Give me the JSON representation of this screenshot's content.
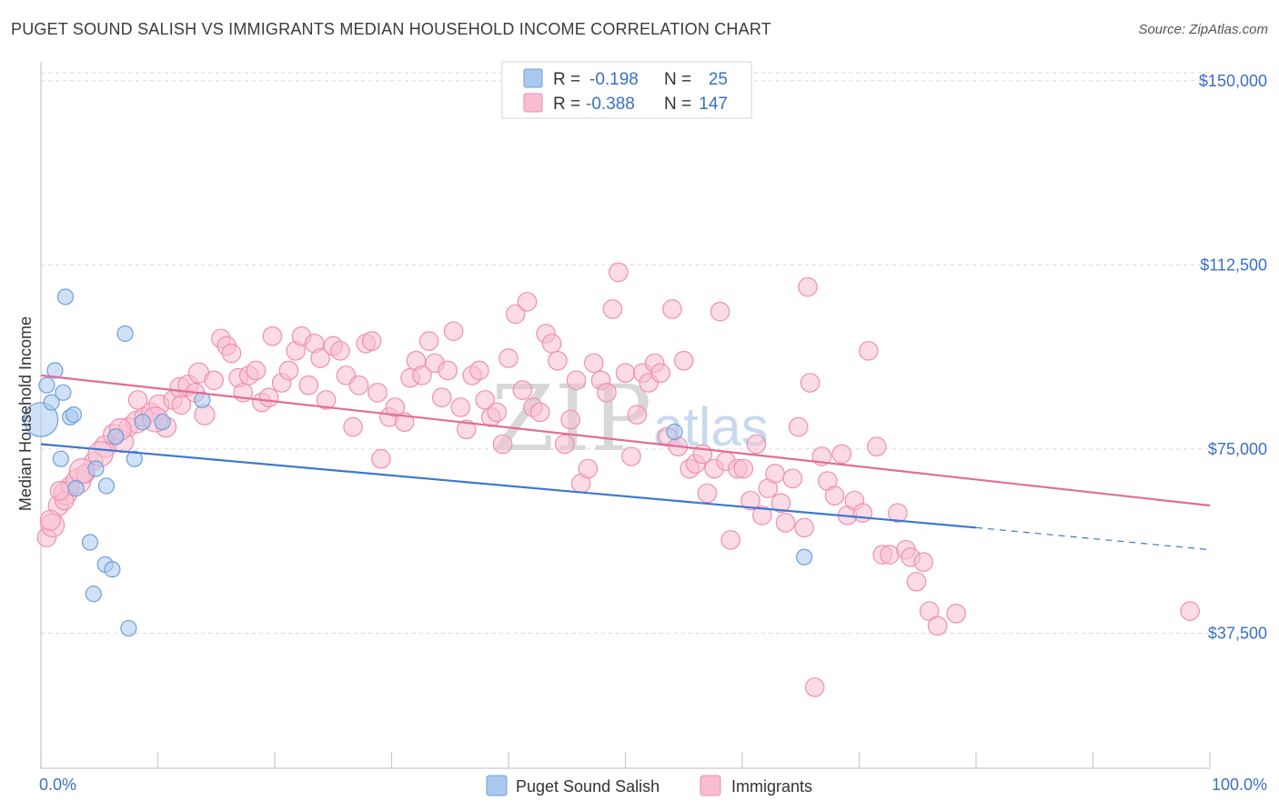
{
  "title": "PUGET SOUND SALISH VS IMMIGRANTS MEDIAN HOUSEHOLD INCOME CORRELATION CHART",
  "source": "Source: ZipAtlas.com",
  "watermark": {
    "zip": "ZIP",
    "atlas": "atlas"
  },
  "colors": {
    "blue_fill": "#a9c8ee",
    "blue_stroke": "#6e9fdc",
    "blue_line": "#3a78d0",
    "pink_fill": "#f7bdd0",
    "pink_stroke": "#ef8fb0",
    "pink_line": "#e26c97",
    "tick_text": "#3a6fc4",
    "grid": "#d9d9d9"
  },
  "legend": {
    "rows": [
      {
        "r_label": "R =",
        "r_value": "-0.198",
        "n_label": "N =",
        "n_value": "25",
        "series": "blue"
      },
      {
        "r_label": "R =",
        "r_value": "-0.388",
        "n_label": "N =",
        "n_value": "147",
        "series": "pink"
      }
    ]
  },
  "chart_data": {
    "type": "scatter",
    "title": "PUGET SOUND SALISH VS IMMIGRANTS MEDIAN HOUSEHOLD INCOME CORRELATION CHART",
    "xlabel": "",
    "ylabel": "Median Household Income",
    "xlim": [
      0,
      100
    ],
    "ylim": [
      10000,
      152000
    ],
    "x_tick_labels": [
      "0.0%",
      "100.0%"
    ],
    "y_ticks": [
      37500,
      75000,
      112500,
      150000
    ],
    "y_tick_labels": [
      "$37,500",
      "$75,000",
      "$112,500",
      "$150,000"
    ],
    "grid": true,
    "legend_position": "bottom",
    "series": [
      {
        "name": "Puget Sound Salish",
        "color": "blue",
        "trend": {
          "x": [
            0,
            80
          ],
          "y": [
            76000,
            59000
          ],
          "dashed_to": [
            100,
            54500
          ]
        },
        "points": [
          [
            0.0,
            81000,
            2.2
          ],
          [
            0.5,
            88000,
            1
          ],
          [
            0.9,
            84500,
            1
          ],
          [
            1.2,
            91000,
            1
          ],
          [
            1.9,
            86500,
            1
          ],
          [
            2.1,
            106000,
            1
          ],
          [
            2.5,
            81500,
            1
          ],
          [
            2.8,
            82000,
            1
          ],
          [
            1.7,
            73000,
            1
          ],
          [
            3.0,
            67000,
            1
          ],
          [
            4.2,
            56000,
            1
          ],
          [
            4.5,
            45500,
            1
          ],
          [
            4.7,
            71000,
            1
          ],
          [
            5.6,
            67500,
            1
          ],
          [
            5.5,
            51500,
            1
          ],
          [
            6.1,
            50500,
            1
          ],
          [
            6.4,
            77500,
            1
          ],
          [
            7.2,
            98500,
            1
          ],
          [
            7.5,
            38500,
            1
          ],
          [
            8.0,
            73000,
            1
          ],
          [
            10.4,
            80500,
            1
          ],
          [
            13.8,
            85000,
            1
          ],
          [
            8.7,
            80500,
            1
          ],
          [
            54.2,
            78500,
            1
          ],
          [
            65.3,
            53000,
            1
          ]
        ]
      },
      {
        "name": "Immigrants",
        "color": "pink",
        "trend": {
          "x": [
            0,
            100
          ],
          "y": [
            90000,
            63500
          ]
        },
        "points": [
          [
            0.5,
            57000,
            1.2
          ],
          [
            1.0,
            59500,
            1.5
          ],
          [
            1.5,
            63500,
            1.3
          ],
          [
            2.1,
            66000,
            1.5
          ],
          [
            2.5,
            67500,
            1.2
          ],
          [
            3.2,
            68500,
            1.6
          ],
          [
            3.8,
            70000,
            1.2
          ],
          [
            4.5,
            72500,
            1.2
          ],
          [
            5.5,
            75500,
            1.4
          ],
          [
            6.2,
            78000,
            1.3
          ],
          [
            7.0,
            76500,
            1.4
          ],
          [
            7.5,
            79500,
            1.2
          ],
          [
            8.2,
            80500,
            1.4
          ],
          [
            8.8,
            81500,
            1.2
          ],
          [
            9.4,
            82500,
            1.2
          ],
          [
            10.1,
            84000,
            1.3
          ],
          [
            10.7,
            79500,
            1.3
          ],
          [
            11.3,
            85000,
            1.2
          ],
          [
            11.9,
            87500,
            1.3
          ],
          [
            12.6,
            88000,
            1.3
          ],
          [
            13.2,
            86500,
            1.2
          ],
          [
            13.5,
            90500,
            1.3
          ],
          [
            14.0,
            82000,
            1.3
          ],
          [
            14.8,
            89000,
            1.2
          ],
          [
            15.4,
            97500,
            1.2
          ],
          [
            15.9,
            96000,
            1.2
          ],
          [
            16.3,
            94500,
            1.2
          ],
          [
            16.9,
            89500,
            1.2
          ],
          [
            17.3,
            86500,
            1.2
          ],
          [
            17.8,
            90000,
            1.2
          ],
          [
            18.4,
            91000,
            1.2
          ],
          [
            18.9,
            84500,
            1.2
          ],
          [
            19.5,
            85500,
            1.2
          ],
          [
            19.8,
            98000,
            1.2
          ],
          [
            20.6,
            88500,
            1.2
          ],
          [
            21.2,
            91000,
            1.2
          ],
          [
            21.8,
            95000,
            1.2
          ],
          [
            22.3,
            98000,
            1.2
          ],
          [
            22.9,
            88000,
            1.2
          ],
          [
            23.4,
            96500,
            1.2
          ],
          [
            23.9,
            93500,
            1.2
          ],
          [
            24.4,
            85000,
            1.2
          ],
          [
            25.0,
            96000,
            1.2
          ],
          [
            25.6,
            95000,
            1.2
          ],
          [
            26.1,
            90000,
            1.2
          ],
          [
            26.7,
            79500,
            1.2
          ],
          [
            27.2,
            88000,
            1.2
          ],
          [
            27.8,
            96500,
            1.2
          ],
          [
            28.3,
            97000,
            1.2
          ],
          [
            28.8,
            86500,
            1.2
          ],
          [
            29.1,
            73000,
            1.2
          ],
          [
            29.8,
            81500,
            1.2
          ],
          [
            30.3,
            83500,
            1.2
          ],
          [
            31.1,
            80500,
            1.2
          ],
          [
            31.6,
            89500,
            1.2
          ],
          [
            32.1,
            93000,
            1.2
          ],
          [
            32.6,
            90000,
            1.2
          ],
          [
            33.2,
            97000,
            1.2
          ],
          [
            33.7,
            92500,
            1.2
          ],
          [
            34.3,
            85500,
            1.2
          ],
          [
            34.8,
            91000,
            1.2
          ],
          [
            35.3,
            99000,
            1.2
          ],
          [
            35.9,
            83500,
            1.2
          ],
          [
            36.4,
            79000,
            1.2
          ],
          [
            36.9,
            90000,
            1.2
          ],
          [
            37.5,
            91000,
            1.2
          ],
          [
            38.0,
            85000,
            1.2
          ],
          [
            38.5,
            81500,
            1.2
          ],
          [
            39.0,
            82500,
            1.2
          ],
          [
            39.5,
            76000,
            1.2
          ],
          [
            40.0,
            93500,
            1.2
          ],
          [
            40.6,
            102500,
            1.2
          ],
          [
            41.2,
            87000,
            1.2
          ],
          [
            41.6,
            105000,
            1.2
          ],
          [
            42.1,
            83500,
            1.2
          ],
          [
            42.7,
            82500,
            1.2
          ],
          [
            43.2,
            98500,
            1.2
          ],
          [
            43.7,
            96500,
            1.2
          ],
          [
            44.2,
            93000,
            1.2
          ],
          [
            44.8,
            76000,
            1.2
          ],
          [
            45.3,
            81000,
            1.2
          ],
          [
            45.8,
            89000,
            1.2
          ],
          [
            46.2,
            68000,
            1.2
          ],
          [
            46.8,
            71000,
            1.2
          ],
          [
            47.3,
            92500,
            1.2
          ],
          [
            47.9,
            89000,
            1.2
          ],
          [
            48.4,
            86500,
            1.2
          ],
          [
            48.9,
            103500,
            1.2
          ],
          [
            49.4,
            111000,
            1.2
          ],
          [
            50.0,
            90500,
            1.2
          ],
          [
            50.5,
            73500,
            1.2
          ],
          [
            51.0,
            82000,
            1.2
          ],
          [
            51.5,
            90500,
            1.2
          ],
          [
            52.0,
            88500,
            1.2
          ],
          [
            52.5,
            92500,
            1.2
          ],
          [
            53.0,
            90500,
            1.2
          ],
          [
            53.6,
            77500,
            1.2
          ],
          [
            54.0,
            103500,
            1.2
          ],
          [
            54.5,
            75500,
            1.2
          ],
          [
            55.0,
            93000,
            1.2
          ],
          [
            55.5,
            71000,
            1.2
          ],
          [
            56.0,
            72000,
            1.2
          ],
          [
            56.6,
            74000,
            1.2
          ],
          [
            57.0,
            66000,
            1.2
          ],
          [
            57.6,
            71000,
            1.2
          ],
          [
            58.1,
            103000,
            1.2
          ],
          [
            58.6,
            72500,
            1.2
          ],
          [
            59.0,
            56500,
            1.2
          ],
          [
            59.6,
            71000,
            1.2
          ],
          [
            60.1,
            71000,
            1.2
          ],
          [
            60.7,
            64500,
            1.2
          ],
          [
            61.2,
            76000,
            1.2
          ],
          [
            61.7,
            61500,
            1.2
          ],
          [
            62.2,
            67000,
            1.2
          ],
          [
            62.8,
            70000,
            1.2
          ],
          [
            63.3,
            64000,
            1.2
          ],
          [
            63.7,
            60000,
            1.2
          ],
          [
            64.3,
            69000,
            1.2
          ],
          [
            64.8,
            79500,
            1.2
          ],
          [
            65.3,
            59000,
            1.2
          ],
          [
            65.6,
            108000,
            1.2
          ],
          [
            65.8,
            88500,
            1.2
          ],
          [
            66.2,
            26500,
            1.2
          ],
          [
            66.8,
            73500,
            1.2
          ],
          [
            67.3,
            68500,
            1.2
          ],
          [
            67.9,
            65500,
            1.2
          ],
          [
            68.5,
            74000,
            1.2
          ],
          [
            69.0,
            61500,
            1.2
          ],
          [
            69.6,
            64500,
            1.2
          ],
          [
            70.3,
            62000,
            1.2
          ],
          [
            70.8,
            95000,
            1.2
          ],
          [
            71.5,
            75500,
            1.2
          ],
          [
            72.0,
            53500,
            1.2
          ],
          [
            72.6,
            53500,
            1.2
          ],
          [
            73.3,
            62000,
            1.2
          ],
          [
            74.0,
            54500,
            1.2
          ],
          [
            74.4,
            53000,
            1.2
          ],
          [
            74.9,
            48000,
            1.2
          ],
          [
            75.5,
            52000,
            1.2
          ],
          [
            76.0,
            42000,
            1.2
          ],
          [
            76.7,
            39000,
            1.2
          ],
          [
            78.3,
            41500,
            1.2
          ],
          [
            98.3,
            42000,
            1.2
          ],
          [
            9.8,
            81000,
            1.6
          ],
          [
            12.0,
            84000,
            1.2
          ],
          [
            8.3,
            85000,
            1.2
          ],
          [
            6.8,
            79000,
            1.4
          ],
          [
            5.1,
            74000,
            1.6
          ],
          [
            3.5,
            70500,
            1.6
          ],
          [
            2.0,
            64500,
            1.2
          ],
          [
            0.8,
            60500,
            1.3
          ],
          [
            1.6,
            66500,
            1.2
          ]
        ]
      }
    ]
  },
  "bottom_legend": {
    "items": [
      {
        "label": "Puget Sound Salish",
        "series": "blue"
      },
      {
        "label": "Immigrants",
        "series": "pink"
      }
    ]
  }
}
